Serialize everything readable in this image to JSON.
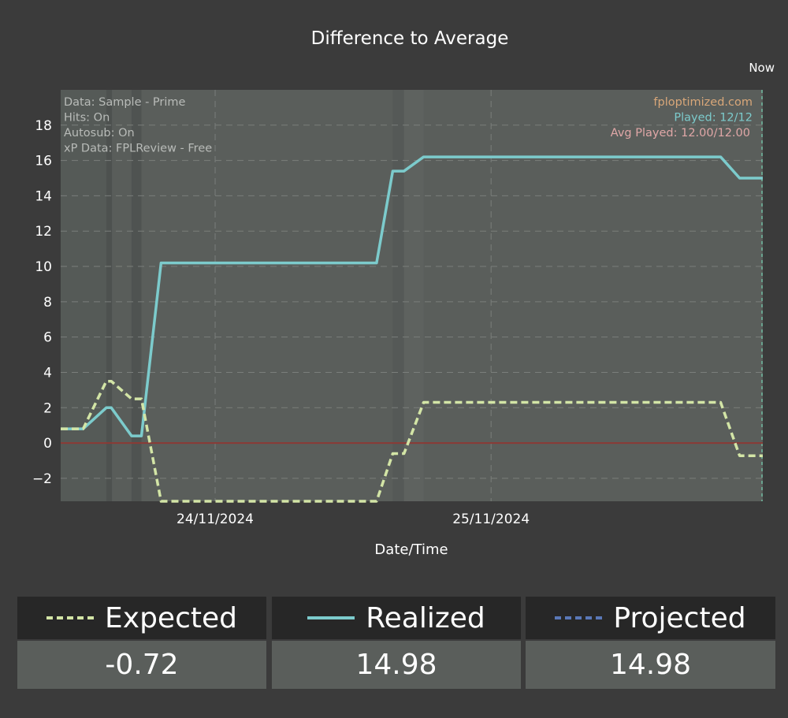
{
  "chart_data": {
    "type": "line",
    "title": "Difference to Average",
    "xlabel": "Date/Time",
    "ylabel": "",
    "ylim": [
      -3.3,
      20
    ],
    "yticks": [
      -2,
      0,
      2,
      4,
      6,
      8,
      10,
      12,
      14,
      16,
      18
    ],
    "xlim": [
      0,
      100
    ],
    "xticks": [
      {
        "x": 22,
        "label": "24/11/2024"
      },
      {
        "x": 61.3,
        "label": "25/11/2024"
      }
    ],
    "now_label": "Now",
    "info_lines": [
      "Data: Sample - Prime",
      "Hits: On",
      "Autosub: On",
      "xP Data: FPLReview - Free"
    ],
    "branding": {
      "site": "fploptimized.com",
      "played": "Played: 12/12",
      "avg_played": "Avg Played: 12.00/12.00"
    },
    "series": [
      {
        "name": "Realized",
        "color": "#7ccbcc",
        "style": "solid",
        "x": [
          0,
          3.2,
          6.5,
          7.2,
          10.1,
          11.5,
          14.3,
          45,
          47.3,
          48.9,
          51.7,
          94,
          96.7,
          100
        ],
        "y": [
          0.8,
          0.8,
          2.0,
          2.0,
          0.4,
          0.4,
          10.2,
          10.2,
          15.4,
          15.4,
          16.2,
          16.2,
          15.0,
          15.0
        ]
      },
      {
        "name": "Expected",
        "color": "#d3e5a6",
        "style": "dashed",
        "x": [
          0,
          3.2,
          6.5,
          7.2,
          10.1,
          11.5,
          14.3,
          45,
          47.3,
          48.9,
          51.7,
          94,
          96.7,
          100
        ],
        "y": [
          0.8,
          0.8,
          3.5,
          3.5,
          2.5,
          2.5,
          -3.3,
          -3.3,
          -0.6,
          -0.6,
          2.3,
          2.3,
          -0.72,
          -0.72
        ]
      }
    ],
    "reference_line": {
      "y": 0,
      "color": "#8b3a35"
    }
  },
  "legend": [
    {
      "label": "Expected",
      "value": "-0.72",
      "color": "#d3e5a6",
      "style": "dashed"
    },
    {
      "label": "Realized",
      "value": "14.98",
      "color": "#7ccbcc",
      "style": "solid"
    },
    {
      "label": "Projected",
      "value": "14.98",
      "color": "#5a78b8",
      "style": "dashed"
    }
  ]
}
